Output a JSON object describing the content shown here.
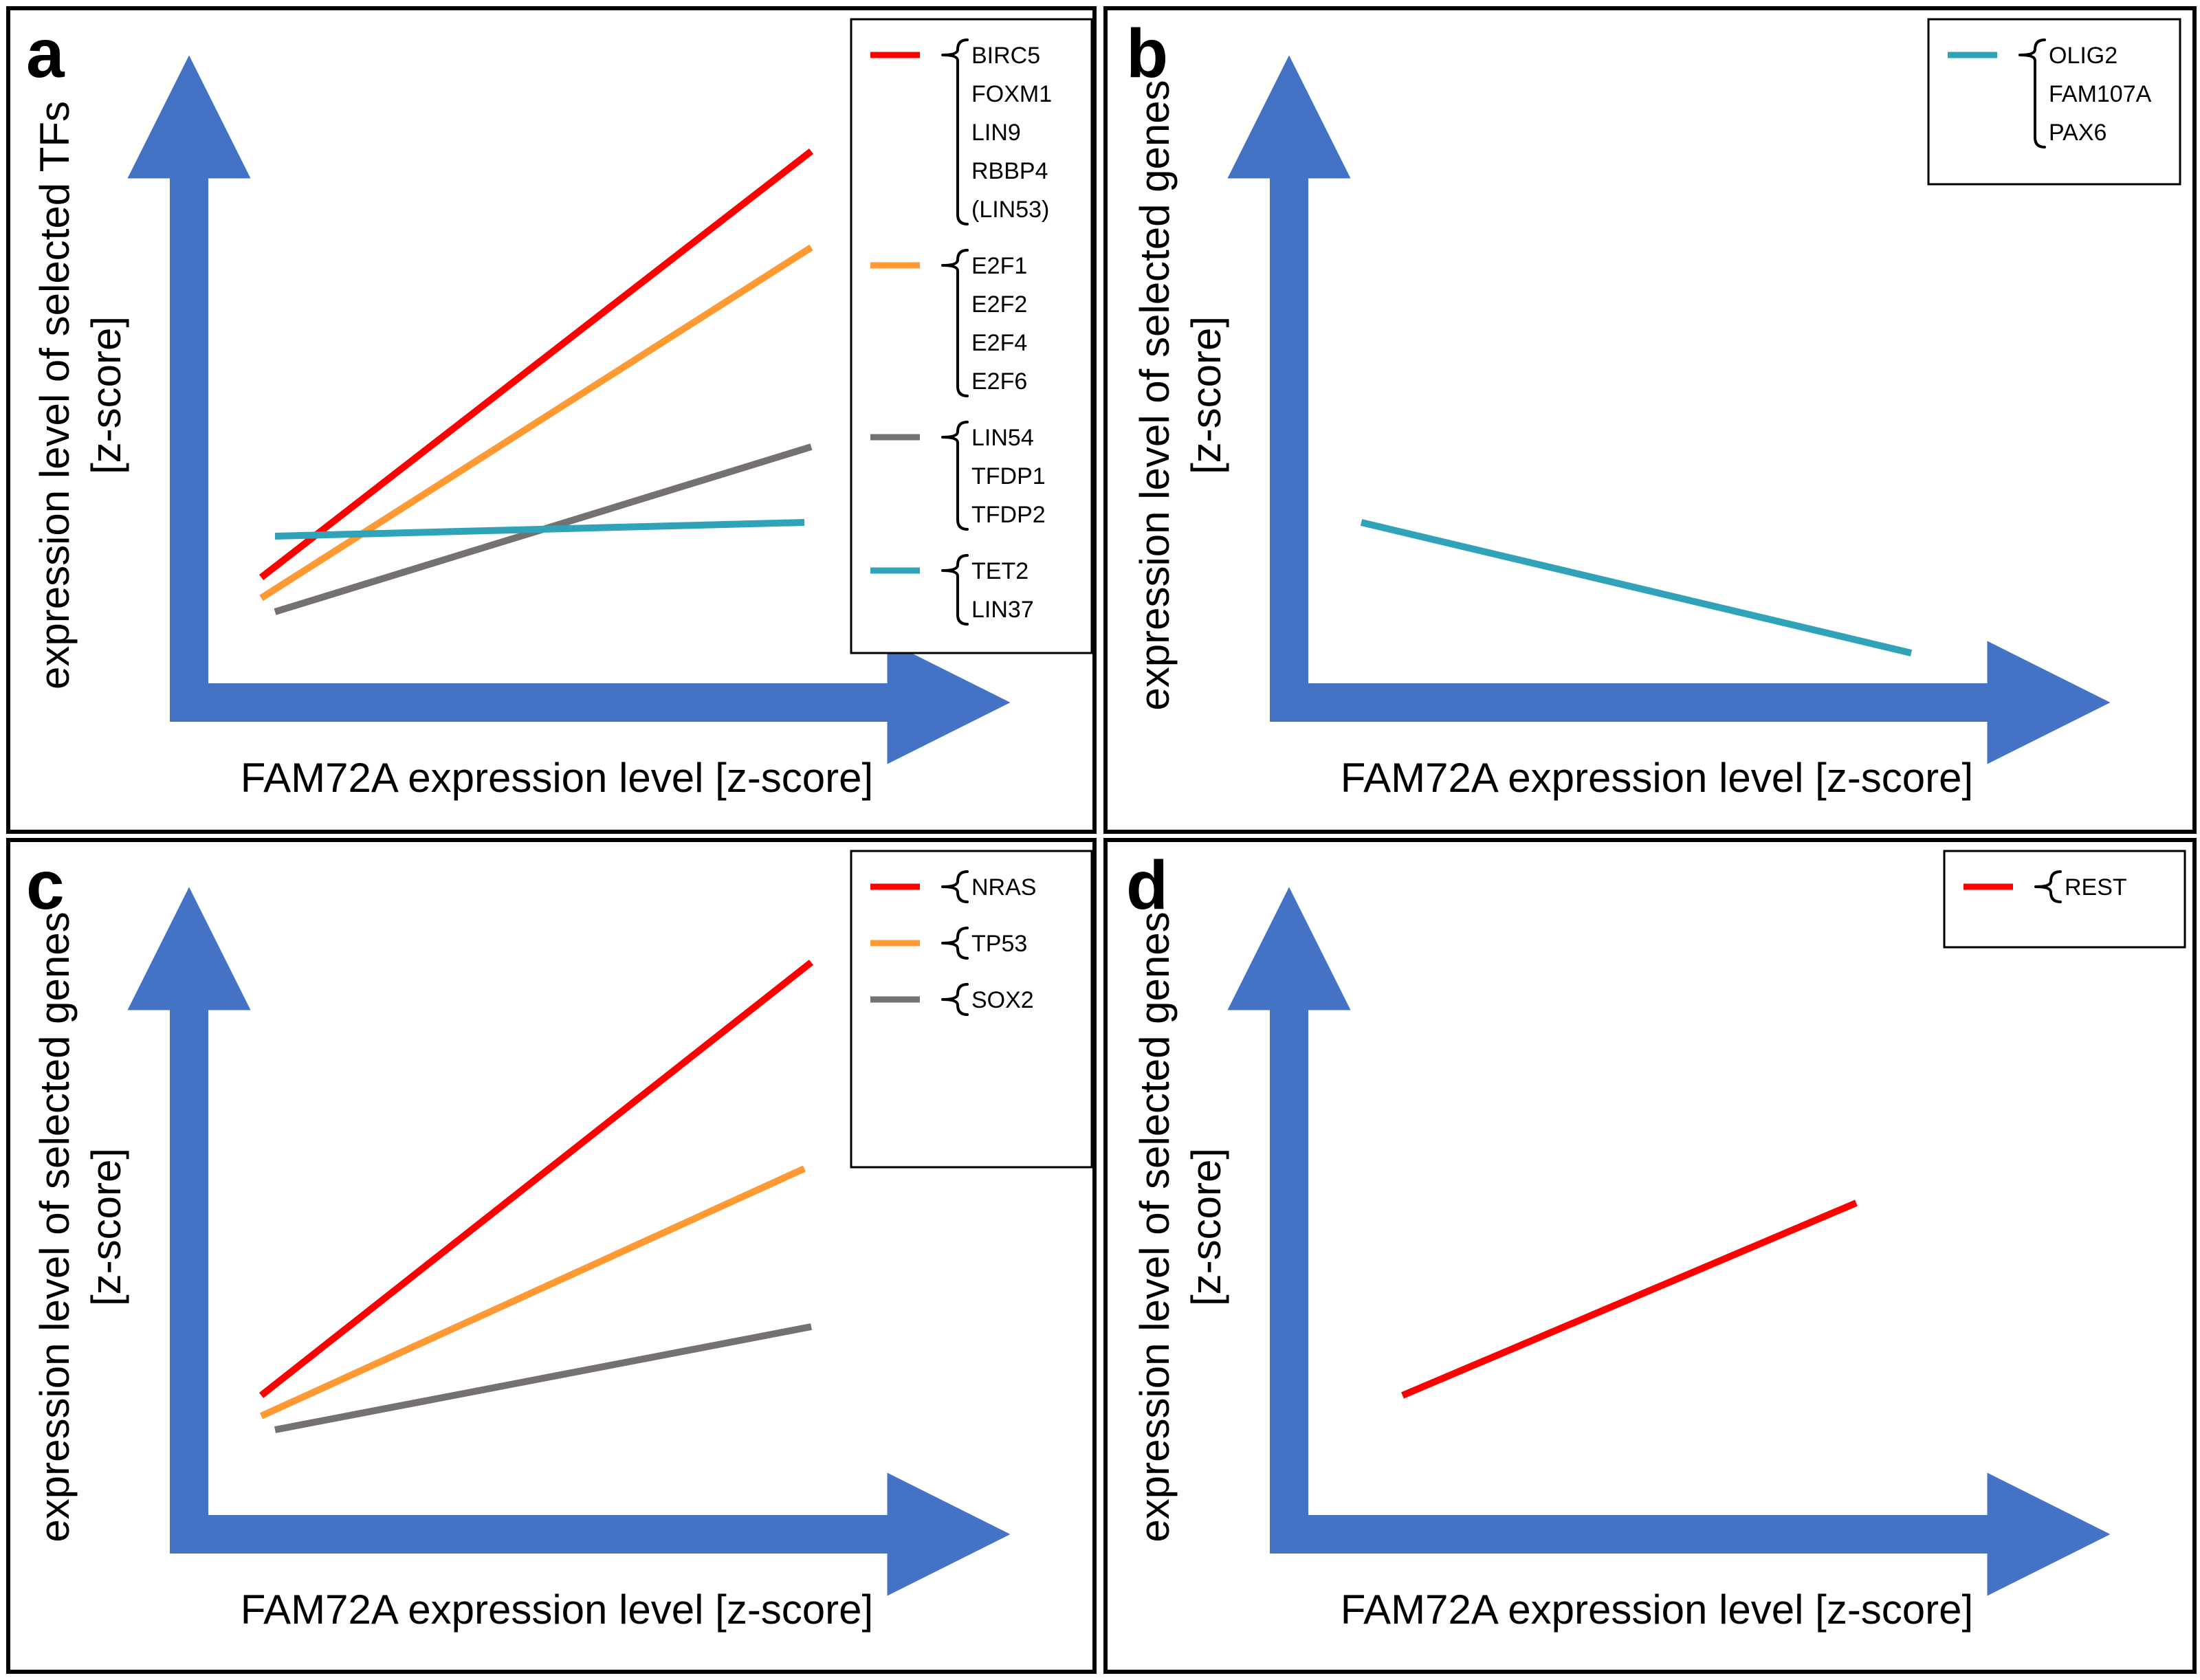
{
  "figure": {
    "arrow_color": "#4472C4",
    "colors": {
      "red": "#FF0000",
      "orange": "#FF9933",
      "gray": "#767171",
      "teal": "#30A3B8"
    }
  },
  "chart_data": [
    {
      "panel": "a",
      "type": "line",
      "title": "",
      "xlabel": "FAM72A expression level [z-score]",
      "ylabel_line1": "expression level of selected TFs",
      "ylabel_line2": "[z-score]",
      "xlim": [
        0,
        10
      ],
      "ylim": [
        0,
        10
      ],
      "grid": false,
      "legend_position": "top-right",
      "series": [
        {
          "name": "BIRC5, FOXM1, LIN9, RBBP4, (LIN53)",
          "color": "#FF0000",
          "x": [
            1.3,
            9.3
          ],
          "y": [
            2.0,
            8.2
          ]
        },
        {
          "name": "E2F1, E2F2, E2F4, E2F6",
          "color": "#FF9933",
          "x": [
            1.3,
            9.3
          ],
          "y": [
            1.7,
            6.8
          ]
        },
        {
          "name": "LIN54, TFDP1, TFDP2",
          "color": "#767171",
          "x": [
            1.5,
            9.3
          ],
          "y": [
            1.5,
            3.9
          ]
        },
        {
          "name": "TET2, LIN37",
          "color": "#30A3B8",
          "x": [
            1.5,
            9.2
          ],
          "y": [
            2.6,
            2.8
          ]
        }
      ],
      "legend": [
        {
          "color": "#FF0000",
          "genes": [
            "BIRC5",
            "FOXM1",
            "LIN9",
            "RBBP4",
            "(LIN53)"
          ]
        },
        {
          "color": "#FF9933",
          "genes": [
            "E2F1",
            "E2F2",
            "E2F4",
            "E2F6"
          ]
        },
        {
          "color": "#767171",
          "genes": [
            "LIN54",
            "TFDP1",
            "TFDP2"
          ]
        },
        {
          "color": "#30A3B8",
          "genes": [
            "TET2",
            "LIN37"
          ]
        }
      ]
    },
    {
      "panel": "b",
      "type": "line",
      "title": "",
      "xlabel": "FAM72A expression level [z-score]",
      "ylabel_line1": "expression level of selected genes",
      "ylabel_line2": "[z-score]",
      "xlim": [
        0,
        10
      ],
      "ylim": [
        0,
        10
      ],
      "grid": false,
      "legend_position": "top-right",
      "series": [
        {
          "name": "OLIG2, FAM107A, PAX6",
          "color": "#30A3B8",
          "x": [
            1.3,
            9.3
          ],
          "y": [
            2.8,
            0.9
          ]
        }
      ],
      "legend": [
        {
          "color": "#30A3B8",
          "genes": [
            "OLIG2",
            "FAM107A",
            "PAX6"
          ]
        }
      ]
    },
    {
      "panel": "c",
      "type": "line",
      "title": "",
      "xlabel": "FAM72A expression level [z-score]",
      "ylabel_line1": "expression level of selected genes",
      "ylabel_line2": "[z-score]",
      "xlim": [
        0,
        10
      ],
      "ylim": [
        0,
        10
      ],
      "grid": false,
      "legend_position": "top-right",
      "series": [
        {
          "name": "NRAS",
          "color": "#FF0000",
          "x": [
            1.3,
            9.3
          ],
          "y": [
            2.2,
            8.5
          ]
        },
        {
          "name": "TP53",
          "color": "#FF9933",
          "x": [
            1.3,
            9.2
          ],
          "y": [
            1.9,
            5.5
          ]
        },
        {
          "name": "SOX2",
          "color": "#767171",
          "x": [
            1.5,
            9.3
          ],
          "y": [
            1.7,
            3.2
          ]
        }
      ],
      "legend": [
        {
          "color": "#FF0000",
          "genes": [
            "NRAS"
          ]
        },
        {
          "color": "#FF9933",
          "genes": [
            "TP53"
          ]
        },
        {
          "color": "#767171",
          "genes": [
            "SOX2"
          ]
        }
      ]
    },
    {
      "panel": "d",
      "type": "line",
      "title": "",
      "xlabel": "FAM72A expression level [z-score]",
      "ylabel_line1": "expression level of selected genes",
      "ylabel_line2": "[z-score]",
      "xlim": [
        0,
        10
      ],
      "ylim": [
        0,
        10
      ],
      "grid": false,
      "legend_position": "top-right",
      "series": [
        {
          "name": "REST",
          "color": "#FF0000",
          "x": [
            1.9,
            8.5
          ],
          "y": [
            2.2,
            5.0
          ]
        }
      ],
      "legend": [
        {
          "color": "#FF0000",
          "genes": [
            "REST"
          ]
        }
      ]
    }
  ]
}
